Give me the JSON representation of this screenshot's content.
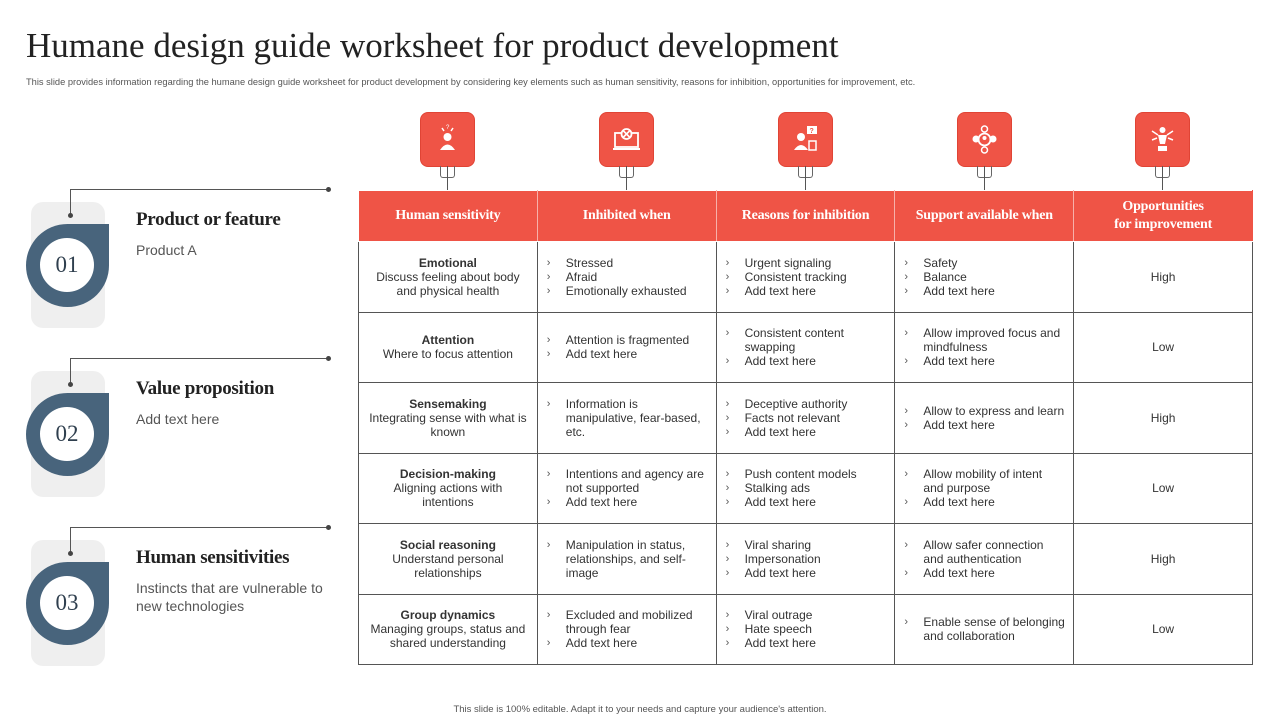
{
  "title": "Humane design guide worksheet for product development",
  "subtitle": "This slide provides information regarding the humane design guide worksheet for product development by considering key elements such as human sensitivity, reasons for inhibition, opportunities for improvement, etc.",
  "footer": "This slide is 100% editable. Adapt it to your needs and capture your audience's attention.",
  "accent_color": "#ef5446",
  "badge_color": "#48647c",
  "left_items": [
    {
      "number": "01",
      "title": "Product or feature",
      "desc": "Product A"
    },
    {
      "number": "02",
      "title": "Value proposition",
      "desc": "Add text here"
    },
    {
      "number": "03",
      "title": "Human sensitivities",
      "desc": "Instincts that are vulnerable to new technologies"
    }
  ],
  "icons": [
    "person-alert-icon",
    "monitor-blocked-icon",
    "person-question-icon",
    "support-network-icon",
    "person-trophy-icon"
  ],
  "table": {
    "headers": [
      "Human sensitivity",
      "Inhibited when",
      "Reasons for inhibition",
      "Support available when",
      "Opportunities\nfor improvement"
    ],
    "rows": [
      {
        "sensitivity": "Emotional",
        "sensitivity_desc": "Discuss feeling about body and physical health",
        "inhibited": [
          "Stressed",
          "Afraid",
          "Emotionally exhausted"
        ],
        "reasons": [
          "Urgent signaling",
          "Consistent tracking",
          "Add text here"
        ],
        "support": [
          "Safety",
          "Balance",
          "Add text here"
        ],
        "opportunity": "High"
      },
      {
        "sensitivity": "Attention",
        "sensitivity_desc": "Where to focus attention",
        "inhibited": [
          "Attention is fragmented",
          "Add text here"
        ],
        "reasons": [
          "Consistent content swapping",
          "Add text here"
        ],
        "support": [
          "Allow improved focus and mindfulness",
          "Add text here"
        ],
        "opportunity": "Low"
      },
      {
        "sensitivity": "Sensemaking",
        "sensitivity_desc": "Integrating sense with what is known",
        "inhibited": [
          "Information is manipulative, fear-based, etc."
        ],
        "reasons": [
          "Deceptive authority",
          "Facts not relevant",
          "Add text here"
        ],
        "support": [
          "Allow to express and learn",
          "Add text here"
        ],
        "opportunity": "High"
      },
      {
        "sensitivity": "Decision-making",
        "sensitivity_desc": "Aligning actions with intentions",
        "inhibited": [
          "Intentions and agency are not supported",
          "Add text here"
        ],
        "reasons": [
          "Push content models",
          "Stalking ads",
          "Add text here"
        ],
        "support": [
          "Allow mobility of intent and purpose",
          "Add text here"
        ],
        "opportunity": "Low"
      },
      {
        "sensitivity": "Social reasoning",
        "sensitivity_desc": "Understand personal relationships",
        "inhibited": [
          "Manipulation in status, relationships, and self-image"
        ],
        "reasons": [
          "Viral sharing",
          "Impersonation",
          "Add text here"
        ],
        "support": [
          "Allow safer connection and authentication",
          "Add text here"
        ],
        "opportunity": "High"
      },
      {
        "sensitivity": "Group dynamics",
        "sensitivity_desc": "Managing groups, status and shared understanding",
        "inhibited": [
          "Excluded and mobilized through fear",
          "Add text here"
        ],
        "reasons": [
          "Viral outrage",
          "Hate speech",
          "Add text here"
        ],
        "support": [
          "Enable sense of belonging and collaboration"
        ],
        "opportunity": "Low"
      }
    ]
  }
}
